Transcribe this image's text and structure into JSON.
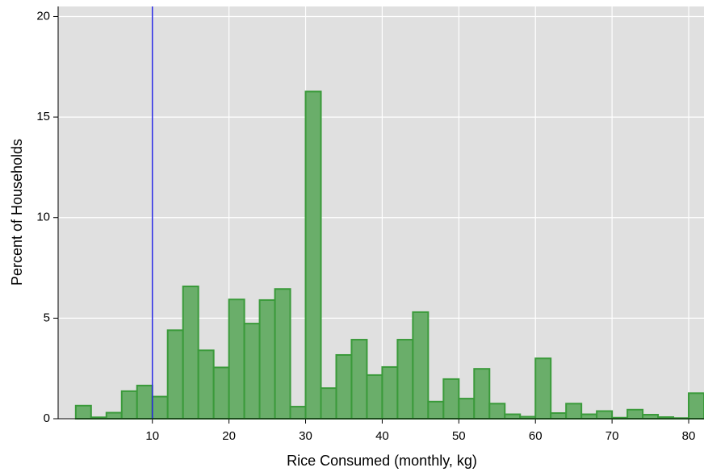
{
  "chart_data": {
    "type": "histogram",
    "xlabel": "Rice Consumed (monthly, kg)",
    "ylabel": "Percent of Households",
    "bins": [
      0,
      2,
      4,
      6,
      8,
      10,
      12,
      14,
      16,
      18,
      20,
      22,
      24,
      26,
      28,
      30,
      32,
      34,
      36,
      38,
      40,
      42,
      44,
      46,
      48,
      50,
      52,
      54,
      56,
      58,
      60,
      62,
      64,
      66,
      68,
      70,
      72,
      74,
      76,
      78,
      80,
      82
    ],
    "values": [
      0.65,
      0.07,
      0.3,
      1.37,
      1.65,
      1.1,
      4.4,
      6.58,
      3.4,
      2.55,
      5.93,
      4.73,
      5.9,
      6.45,
      0.6,
      16.27,
      1.52,
      3.17,
      3.93,
      2.17,
      2.57,
      3.93,
      5.3,
      0.85,
      1.97,
      1.0,
      2.48,
      0.75,
      0.22,
      0.1,
      3.0,
      0.28,
      0.75,
      0.22,
      0.38,
      0.05,
      0.45,
      0.2,
      0.08,
      0.03,
      1.27
    ],
    "color": "#6aae6a",
    "edgecolor": "#3a9a3a",
    "vline": 10,
    "vline_color": "#2a2ae6",
    "xlim": [
      -2.3,
      82
    ],
    "ylim": [
      0,
      20.5
    ],
    "xticks": [
      10,
      20,
      30,
      40,
      50,
      60,
      70,
      80
    ],
    "yticks": [
      0,
      5,
      10,
      15,
      20
    ],
    "grid": true
  }
}
